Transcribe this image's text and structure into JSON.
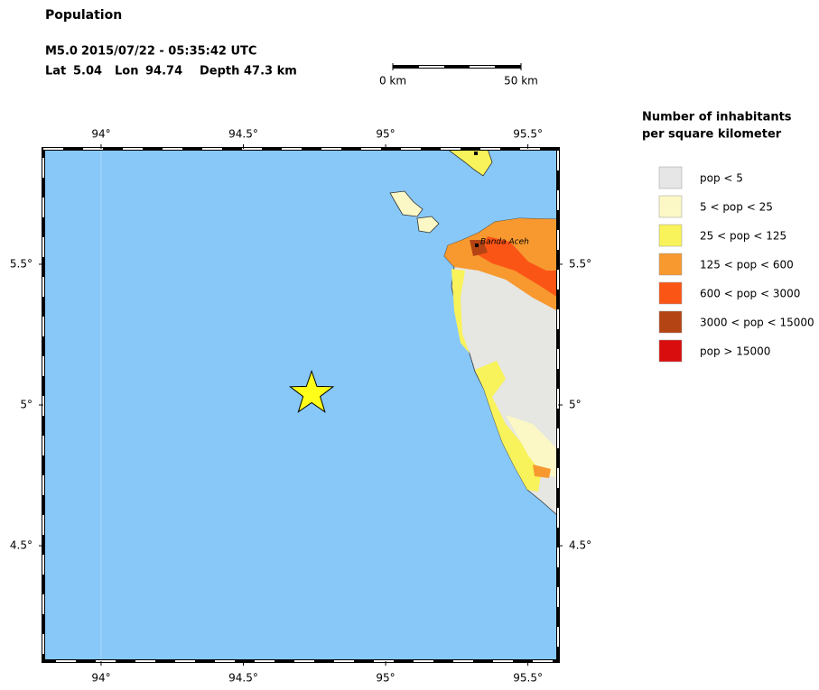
{
  "header": {
    "title": "Population",
    "magnitude": "M5.0",
    "datetime": "2015/07/22 - 05:35:42 UTC",
    "lat_label": "Lat",
    "lat": 5.04,
    "lon_label": "Lon",
    "lon": 94.74,
    "depth_label": "Depth",
    "depth": "47.3 km"
  },
  "scale_bar": {
    "start": "0 km",
    "end": "50 km"
  },
  "map": {
    "xlim": [
      93.797,
      95.606
    ],
    "ylim": [
      4.09,
      5.91
    ],
    "xticks": [
      {
        "value": 94,
        "label": "94°"
      },
      {
        "value": 94.5,
        "label": "94.5°"
      },
      {
        "value": 95,
        "label": "95°"
      },
      {
        "value": 95.5,
        "label": "95.5°"
      }
    ],
    "yticks": [
      {
        "value": 4.5,
        "label": "4.5°"
      },
      {
        "value": 5,
        "label": "5°"
      },
      {
        "value": 5.5,
        "label": "5.5°"
      }
    ],
    "city": "Banda Aceh"
  },
  "legend": {
    "title": [
      "Number of inhabitants",
      "per square kilometer"
    ],
    "items": [
      {
        "label": "pop < 5",
        "color": "#e6e6e6"
      },
      {
        "label": "5 < pop < 25",
        "color": "#fbf8c6"
      },
      {
        "label": "25 < pop < 125",
        "color": "#f8f35a"
      },
      {
        "label": "125 < pop < 600",
        "color": "#f7992f"
      },
      {
        "label": "600 < pop < 3000",
        "color": "#fb5516"
      },
      {
        "label": "3000 < pop < 15000",
        "color": "#b54414"
      },
      {
        "label": "pop > 15000",
        "color": "#d90d0d"
      }
    ]
  }
}
